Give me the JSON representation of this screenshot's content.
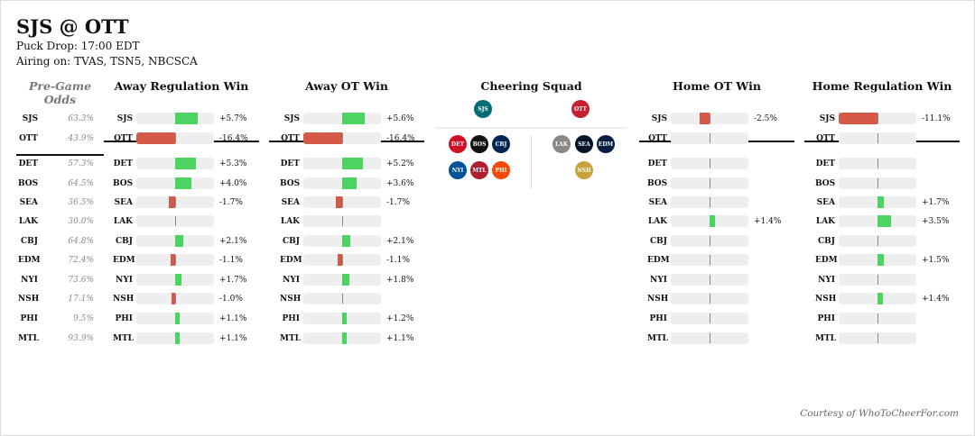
{
  "header": {
    "title": "SJS @ OTT",
    "puck_drop": "Puck Drop: 17:00 EDT",
    "airing": "Airing on: TVAS, TSN5, NBCSCA"
  },
  "odds": {
    "title": "Pre-Game Odds",
    "teams": [
      [
        "SJS",
        "63.3%"
      ],
      [
        "OTT",
        "43.9%"
      ],
      [
        "DET",
        "57.3%"
      ],
      [
        "BOS",
        "64.5%"
      ],
      [
        "SEA",
        "36.5%"
      ],
      [
        "LAK",
        "30.0%"
      ],
      [
        "CBJ",
        "64.8%"
      ],
      [
        "EDM",
        "72.4%"
      ],
      [
        "NYI",
        "73.6%"
      ],
      [
        "NSH",
        "17.1%"
      ],
      [
        "PHI",
        "9.5%"
      ],
      [
        "MTL",
        "93.9%"
      ]
    ]
  },
  "colors": {
    "positive": "#4cd460",
    "negative": "#d45a47",
    "track": "#eeeeee"
  },
  "panels": [
    {
      "title": "Away Regulation Win",
      "values": [
        5.7,
        -16.4,
        5.3,
        4.0,
        -1.7,
        null,
        2.1,
        -1.1,
        1.7,
        -1.0,
        1.1,
        1.1
      ],
      "labels": [
        "+5.7%",
        "-16.4%",
        "+5.3%",
        "+4.0%",
        "-1.7%",
        "",
        "+2.1%",
        "-1.1%",
        "+1.7%",
        "-1.0%",
        "+1.1%",
        "+1.1%"
      ]
    },
    {
      "title": "Away OT Win",
      "values": [
        5.6,
        -16.4,
        5.2,
        3.6,
        -1.7,
        null,
        2.1,
        -1.1,
        1.8,
        null,
        1.2,
        1.1
      ],
      "labels": [
        "+5.6%",
        "-16.4%",
        "+5.2%",
        "+3.6%",
        "-1.7%",
        "",
        "+2.1%",
        "-1.1%",
        "+1.8%",
        "",
        "+1.2%",
        "+1.1%"
      ]
    },
    {
      "title": "Home OT Win",
      "values": [
        -2.5,
        null,
        null,
        null,
        null,
        1.4,
        null,
        null,
        null,
        null,
        null,
        null
      ],
      "labels": [
        "-2.5%",
        "",
        "",
        "",
        "",
        "+1.4%",
        "",
        "",
        "",
        "",
        "",
        ""
      ]
    },
    {
      "title": "Home Regulation Win",
      "values": [
        -11.1,
        null,
        null,
        null,
        1.7,
        3.5,
        null,
        1.5,
        null,
        1.4,
        null,
        null
      ],
      "labels": [
        "-11.1%",
        "",
        "",
        "",
        "+1.7%",
        "+3.5%",
        "",
        "+1.5%",
        "",
        "+1.4%",
        "",
        ""
      ]
    }
  ],
  "teams": [
    "SJS",
    "OTT",
    "DET",
    "BOS",
    "SEA",
    "LAK",
    "CBJ",
    "EDM",
    "NYI",
    "NSH",
    "PHI",
    "MTL"
  ],
  "cheering": {
    "title": "Cheering Squad",
    "away": "SJS",
    "home": "OTT",
    "away_fans": [
      [
        "DET",
        "#ce1126"
      ],
      [
        "BOS",
        "#111111"
      ],
      [
        "CBJ",
        "#002654"
      ],
      [
        "NYI",
        "#00539b"
      ],
      [
        "MTL",
        "#af1e2d"
      ],
      [
        "PHI",
        "#f74902"
      ]
    ],
    "home_fans": [
      [
        "LAK",
        "#888888"
      ],
      [
        "SEA",
        "#001628"
      ],
      [
        "EDM",
        "#041e42"
      ],
      [
        "NSH",
        "#c9a23a"
      ]
    ],
    "away_color": "#006d75",
    "home_color": "#c52032"
  },
  "footer": "Courtesy of WhoToCheerFor.com"
}
